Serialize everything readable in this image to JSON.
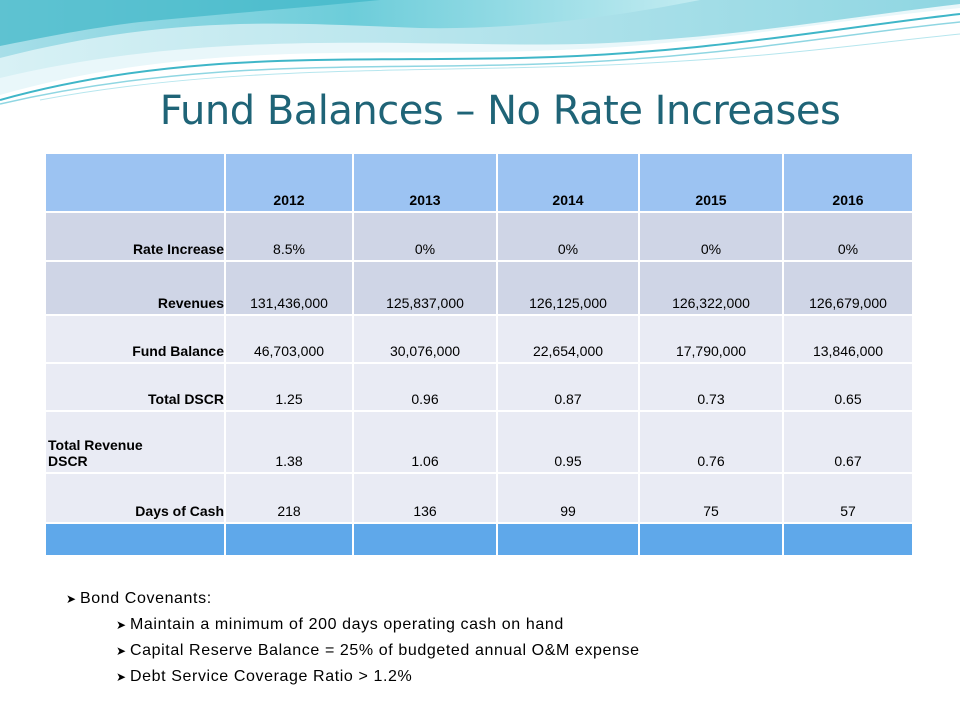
{
  "slide": {
    "title": "Fund Balances – No Rate Increases"
  },
  "table": {
    "years": [
      "2012",
      "2013",
      "2014",
      "2015",
      "2016"
    ],
    "rows": [
      {
        "label": "Rate Increase",
        "values": [
          "8.5%",
          "0%",
          "0%",
          "0%",
          "0%"
        ]
      },
      {
        "label": "Revenues",
        "values": [
          "131,436,000",
          "125,837,000",
          "126,125,000",
          "126,322,000",
          "126,679,000"
        ]
      },
      {
        "label": "Fund Balance",
        "values": [
          "46,703,000",
          "30,076,000",
          "22,654,000",
          "17,790,000",
          "13,846,000"
        ]
      },
      {
        "label": "Total DSCR",
        "values": [
          "1.25",
          "0.96",
          "0.87",
          "0.73",
          "0.65"
        ]
      },
      {
        "label_line1": "Total Revenue",
        "label_line2": "DSCR",
        "values": [
          "1.38",
          "1.06",
          "0.95",
          "0.76",
          "0.67"
        ]
      },
      {
        "label": "Days of Cash",
        "values": [
          "218",
          "136",
          "99",
          "75",
          "57"
        ]
      }
    ]
  },
  "bullets": {
    "main": "Bond Covenants:",
    "sub": [
      "Maintain a minimum of 200 days operating cash on hand",
      "Capital Reserve Balance = 25% of budgeted annual O&M expense",
      "Debt Service Coverage Ratio > 1.2%"
    ],
    "marker_icon": "arrow-bullet-icon"
  },
  "colors": {
    "title": "#1f6477",
    "header_fill": "#9cc3f2",
    "row_dark": "#cfd5e6",
    "row_light": "#e9ebf4",
    "footer_fill": "#5fa8ea",
    "wave_teal": "#5ec8d6"
  }
}
